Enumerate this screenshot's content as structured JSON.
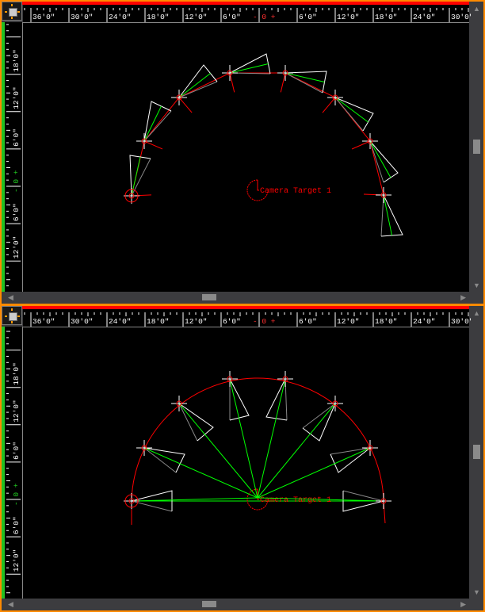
{
  "rulers": {
    "horizontal_labels": [
      "36'0\"",
      "30'0\"",
      "24'0\"",
      "18'0\"",
      "12'0\"",
      "6'0\"",
      "- 0 +",
      "6'0\"",
      "12'0\"",
      "18'0\"",
      "24'0\"",
      "30'0\""
    ],
    "vertical_labels": [
      "18'0\"",
      "12'0\"",
      "6'0\"",
      "- 0 +",
      "6'0\"",
      "12'0\""
    ]
  },
  "viewports": [
    {
      "name": "top",
      "target_label": "Camera Target 1"
    },
    {
      "name": "front",
      "target_label": "Camera Target 1"
    }
  ],
  "colors": {
    "border": "#ff8a00",
    "active_bar": "#ff0000",
    "origin": "#22c022",
    "camera_path": "#ff0000",
    "frustum": "#ffffff",
    "sight_line": "#00ff00"
  }
}
